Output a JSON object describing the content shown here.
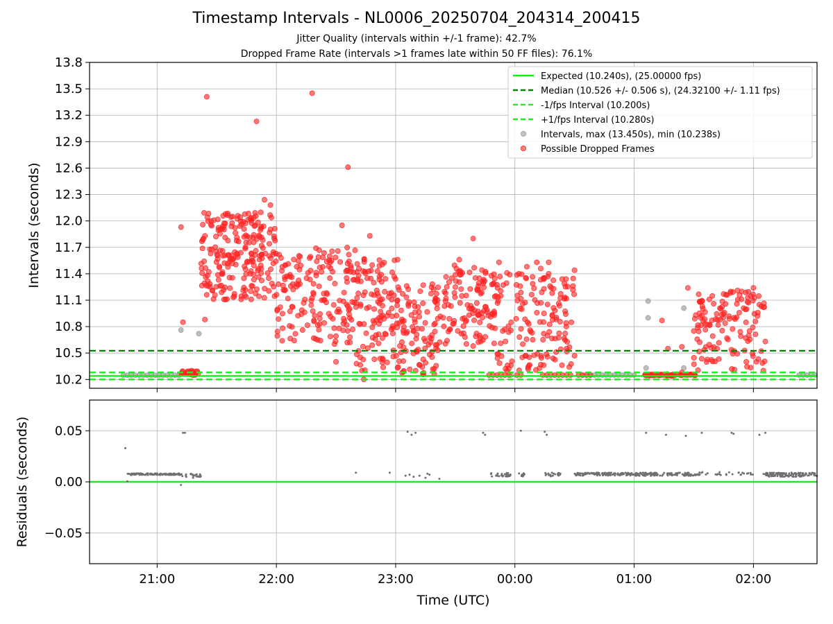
{
  "figure": {
    "title": "Timestamp Intervals - NL0006_20250704_204314_200415",
    "subtitle_1": "Jitter Quality (intervals within +/-1 frame): 42.7%",
    "subtitle_2": "Dropped Frame Rate (intervals >1 frames late within 50 FF files): 76.1%"
  },
  "colors": {
    "expected": "#11ee11",
    "median": "#008800",
    "interval_bounds": "#22ee22",
    "normal_points": "#999999",
    "dropped_points": "#ff2222",
    "residual_points": "#707070",
    "grid": "#b0b0b0"
  },
  "chart_data": [
    {
      "type": "scatter",
      "panel": "intervals",
      "xlabel": "",
      "ylabel": "Intervals (seconds)",
      "x_unit": "time UTC (Jul 4-5 2025)",
      "xlim": [
        "20:26",
        "02:32"
      ],
      "ylim": [
        10.1,
        13.8
      ],
      "yticks": [
        "10.2",
        "10.5",
        "10.8",
        "11.1",
        "11.4",
        "11.7",
        "12.0",
        "12.3",
        "12.6",
        "12.9",
        "13.2",
        "13.5",
        "13.8"
      ],
      "grid": true,
      "legend": {
        "placement": "top-right",
        "entries": [
          {
            "label": "Expected (10.240s), (25.00000 fps)",
            "style": "solid-line",
            "color_key": "expected"
          },
          {
            "label": "Median (10.526 +/- 0.506 s), (24.32100 +/- 1.11 fps)",
            "style": "dashed-line",
            "color_key": "median"
          },
          {
            "label": "-1/fps Interval (10.200s)",
            "style": "dashed-line",
            "color_key": "interval_bounds"
          },
          {
            "label": "+1/fps Interval (10.280s)",
            "style": "dashed-line",
            "color_key": "interval_bounds"
          },
          {
            "label": "Intervals, max (13.450s), min (10.238s)",
            "style": "marker",
            "color_key": "normal_points"
          },
          {
            "label": "Possible Dropped Frames",
            "style": "marker",
            "color_key": "dropped_points"
          }
        ]
      },
      "reference_lines": {
        "expected": 10.24,
        "median": 10.526,
        "minus_1fps": 10.2,
        "plus_1fps": 10.28
      },
      "series": [
        {
          "name": "Intervals, max (13.450s), min (10.238s)",
          "style": "gray-points",
          "points": [
            [
              "20:43",
              10.248
            ],
            [
              "20:45",
              10.248
            ],
            [
              "20:47",
              10.248
            ],
            [
              "20:49",
              10.248
            ],
            [
              "20:51",
              10.248
            ],
            [
              "20:53",
              10.248
            ],
            [
              "20:55",
              10.248
            ],
            [
              "20:57",
              10.248
            ],
            [
              "20:59",
              10.248
            ],
            [
              "21:01",
              10.248
            ],
            [
              "21:03",
              10.248
            ],
            [
              "21:05",
              10.248
            ],
            [
              "21:07",
              10.248
            ],
            [
              "21:09",
              10.248
            ],
            [
              "21:11",
              10.248
            ],
            [
              "21:12",
              10.76
            ],
            [
              "21:21",
              10.72
            ],
            [
              "23:58",
              10.25
            ],
            [
              "00:34",
              10.25
            ],
            [
              "00:36",
              10.25
            ],
            [
              "00:38",
              10.25
            ],
            [
              "00:40",
              10.25
            ],
            [
              "00:42",
              10.25
            ],
            [
              "00:44",
              10.25
            ],
            [
              "00:46",
              10.25
            ],
            [
              "00:48",
              10.25
            ],
            [
              "00:50",
              10.25
            ],
            [
              "00:52",
              10.25
            ],
            [
              "00:54",
              10.25
            ],
            [
              "00:56",
              10.25
            ],
            [
              "00:58",
              10.25
            ],
            [
              "01:00",
              10.25
            ],
            [
              "01:06",
              10.33
            ],
            [
              "01:07",
              10.9
            ],
            [
              "01:07",
              11.09
            ],
            [
              "01:25",
              11.01
            ],
            [
              "01:25",
              10.33
            ],
            [
              "02:23",
              10.25
            ],
            [
              "02:25",
              10.25
            ],
            [
              "02:27",
              10.25
            ],
            [
              "02:29",
              10.25
            ],
            [
              "02:31",
              10.25
            ]
          ]
        },
        {
          "name": "Possible Dropped Frames",
          "style": "red-points",
          "clusters": [
            {
              "from": "21:11",
              "to": "21:21",
              "low": 10.24,
              "high": 10.3,
              "count": 24
            },
            {
              "from": "21:22",
              "to": "22:00",
              "low": 11.1,
              "high": 12.1,
              "count": 230
            },
            {
              "from": "22:00",
              "to": "22:40",
              "low": 10.6,
              "high": 11.7,
              "count": 170
            },
            {
              "from": "22:40",
              "to": "23:00",
              "low": 10.3,
              "high": 11.6,
              "count": 110
            },
            {
              "from": "23:00",
              "to": "23:22",
              "low": 10.25,
              "high": 11.3,
              "count": 110
            },
            {
              "from": "23:22",
              "to": "23:50",
              "low": 10.6,
              "high": 11.5,
              "count": 120
            },
            {
              "from": "23:50",
              "to": "23:59",
              "low": 10.3,
              "high": 11.4,
              "count": 30
            },
            {
              "from": "00:00",
              "to": "00:20",
              "low": 10.3,
              "high": 11.4,
              "count": 80
            },
            {
              "from": "00:20",
              "to": "00:30",
              "low": 10.3,
              "high": 11.4,
              "count": 40
            },
            {
              "from": "01:05",
              "to": "01:31",
              "low": 10.24,
              "high": 10.26,
              "count": 50
            },
            {
              "from": "01:30",
              "to": "02:06",
              "low": 10.3,
              "high": 11.2,
              "count": 130
            }
          ],
          "points": [
            [
              "21:12",
              11.93
            ],
            [
              "21:13",
              10.85
            ],
            [
              "21:15",
              10.28
            ],
            [
              "21:24",
              10.88
            ],
            [
              "21:25",
              13.41
            ],
            [
              "21:50",
              13.13
            ],
            [
              "21:54",
              12.24
            ],
            [
              "21:57",
              12.18
            ],
            [
              "22:18",
              13.45
            ],
            [
              "22:36",
              12.61
            ],
            [
              "22:33",
              11.95
            ],
            [
              "22:30",
              10.4
            ],
            [
              "22:43",
              10.3
            ],
            [
              "22:44",
              10.2
            ],
            [
              "22:47",
              11.83
            ],
            [
              "23:01",
              11.56
            ],
            [
              "23:32",
              11.56
            ],
            [
              "23:39",
              11.8
            ],
            [
              "23:39",
              10.58
            ],
            [
              "23:52",
              11.53
            ],
            [
              "23:56",
              11.41
            ],
            [
              "23:56",
              10.3
            ],
            [
              "00:02",
              11.4
            ],
            [
              "00:06",
              11.48
            ],
            [
              "00:11",
              11.53
            ],
            [
              "00:13",
              11.46
            ],
            [
              "00:17",
              11.53
            ],
            [
              "00:17",
              11.4
            ],
            [
              "00:26",
              10.55
            ],
            [
              "00:30",
              11.44
            ],
            [
              "00:30",
              10.47
            ],
            [
              "23:47",
              10.25
            ],
            [
              "23:49",
              10.25
            ],
            [
              "23:51",
              10.25
            ],
            [
              "23:53",
              10.25
            ],
            [
              "23:55",
              10.25
            ],
            [
              "23:57",
              10.25
            ],
            [
              "00:01",
              10.25
            ],
            [
              "00:03",
              10.25
            ],
            [
              "00:14",
              10.25
            ],
            [
              "00:16",
              10.25
            ],
            [
              "00:18",
              10.25
            ],
            [
              "00:20",
              10.25
            ],
            [
              "00:22",
              10.25
            ],
            [
              "00:24",
              10.25
            ],
            [
              "00:26",
              10.25
            ],
            [
              "00:28",
              10.25
            ],
            [
              "00:32",
              10.25
            ],
            [
              "00:34",
              10.25
            ],
            [
              "00:36",
              10.25
            ],
            [
              "00:38",
              10.25
            ],
            [
              "01:14",
              10.87
            ],
            [
              "01:17",
              10.55
            ],
            [
              "01:24",
              10.57
            ],
            [
              "01:24",
              10.28
            ],
            [
              "01:27",
              11.24
            ],
            [
              "01:38",
              10.82
            ],
            [
              "01:40",
              11.06
            ],
            [
              "01:45",
              11.17
            ],
            [
              "01:52",
              11.21
            ],
            [
              "01:54",
              11.11
            ],
            [
              "02:00",
              11.24
            ],
            [
              "02:03",
              11.05
            ],
            [
              "02:04",
              11.03
            ],
            [
              "02:06",
              10.63
            ],
            [
              "02:05",
              10.3
            ]
          ]
        }
      ]
    },
    {
      "type": "scatter",
      "panel": "residuals",
      "xlabel": "Time (UTC)",
      "ylabel": "Residuals (seconds)",
      "xlim": [
        "20:26",
        "02:32"
      ],
      "ylim": [
        -0.08,
        0.08
      ],
      "xticks": [
        "21:00",
        "22:00",
        "23:00",
        "00:00",
        "01:00",
        "02:00"
      ],
      "yticks": [
        "−0.05",
        "0.00",
        "0.05"
      ],
      "grid": true,
      "zero_line": 0.0,
      "series": [
        {
          "name": "",
          "style": "small-gray-points",
          "bands": [
            {
              "from": "20:45",
              "to": "21:12",
              "center": 0.0075,
              "spread": 0.0015,
              "count": 110
            },
            {
              "from": "21:12",
              "to": "21:22",
              "center": 0.006,
              "spread": 0.004,
              "count": 25
            },
            {
              "from": "23:47",
              "to": "23:58",
              "center": 0.007,
              "spread": 0.004,
              "count": 28
            },
            {
              "from": "00:02",
              "to": "00:05",
              "center": 0.007,
              "spread": 0.004,
              "count": 10
            },
            {
              "from": "00:15",
              "to": "00:23",
              "center": 0.007,
              "spread": 0.004,
              "count": 20
            },
            {
              "from": "00:30",
              "to": "01:30",
              "center": 0.0075,
              "spread": 0.003,
              "count": 240
            },
            {
              "from": "01:30",
              "to": "01:45",
              "center": 0.008,
              "spread": 0.003,
              "count": 18
            },
            {
              "from": "01:45",
              "to": "02:00",
              "center": 0.008,
              "spread": 0.003,
              "count": 15
            },
            {
              "from": "02:05",
              "to": "02:32",
              "center": 0.007,
              "spread": 0.004,
              "count": 120
            }
          ],
          "points": [
            [
              "20:44",
              0.033
            ],
            [
              "20:45",
              0.0005
            ],
            [
              "21:12",
              -0.003
            ],
            [
              "21:13",
              0.048
            ],
            [
              "21:14",
              0.048
            ],
            [
              "22:40",
              0.009
            ],
            [
              "22:57",
              0.009
            ],
            [
              "23:06",
              0.049
            ],
            [
              "23:08",
              0.046
            ],
            [
              "23:10",
              0.048
            ],
            [
              "23:05",
              0.006
            ],
            [
              "23:07",
              0.007
            ],
            [
              "23:09",
              0.005
            ],
            [
              "23:12",
              0.006
            ],
            [
              "23:15",
              0.004
            ],
            [
              "23:16",
              0.008
            ],
            [
              "23:17",
              0.007
            ],
            [
              "23:22",
              0.003
            ],
            [
              "23:44",
              0.048
            ],
            [
              "23:45",
              0.046
            ],
            [
              "00:03",
              0.05
            ],
            [
              "00:15",
              0.049
            ],
            [
              "00:16",
              0.046
            ],
            [
              "01:06",
              0.048
            ],
            [
              "01:16",
              0.046
            ],
            [
              "01:26",
              0.045
            ],
            [
              "01:34",
              0.048
            ],
            [
              "01:49",
              0.048
            ],
            [
              "01:50",
              0.047
            ],
            [
              "02:03",
              0.046
            ],
            [
              "02:06",
              0.048
            ]
          ]
        }
      ]
    }
  ]
}
